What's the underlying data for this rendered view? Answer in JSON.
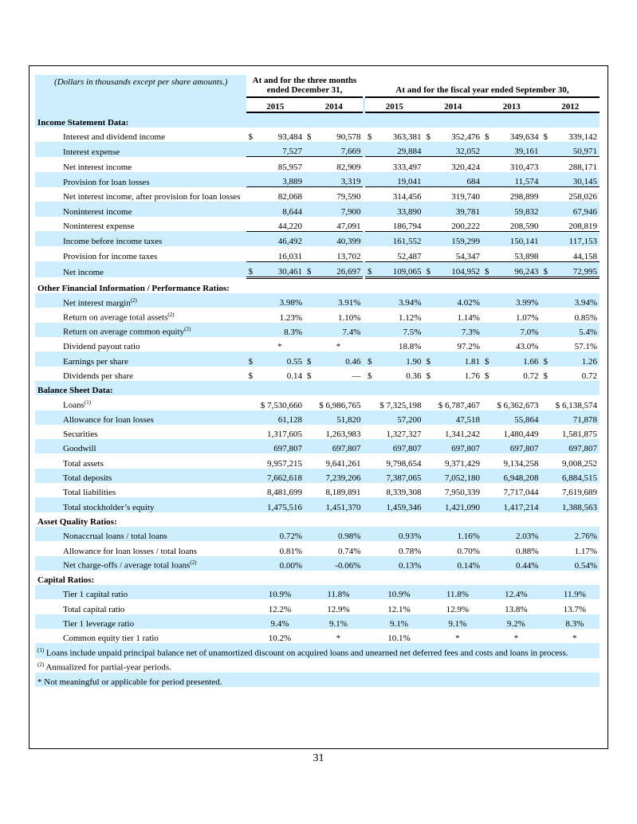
{
  "header": {
    "caption": "(Dollars in thousands except per share amounts.)",
    "group1": "At and for the three months ended December 31,",
    "group2": "At and for the fiscal year ended September 30,",
    "years": [
      "2015",
      "2014",
      "2015",
      "2014",
      "2013",
      "2012"
    ]
  },
  "sections": [
    {
      "title": "Income Statement Data:",
      "rows": [
        {
          "label": "Interest and dividend income",
          "dollar": true,
          "values": [
            "93,484",
            "90,578",
            "363,381",
            "352,476",
            "349,634",
            "339,142"
          ]
        },
        {
          "label": "Interest expense",
          "underline": "single",
          "values": [
            "7,527",
            "7,669",
            "29,884",
            "32,052",
            "39,161",
            "50,971"
          ]
        },
        {
          "label": "Net interest income",
          "values": [
            "85,957",
            "82,909",
            "333,497",
            "320,424",
            "310,473",
            "288,171"
          ]
        },
        {
          "label": "Provision for loan losses",
          "underline": "single",
          "values": [
            "3,889",
            "3,319",
            "19,041",
            "684",
            "11,574",
            "30,145"
          ]
        },
        {
          "label": "Net interest income, after provision for loan losses",
          "values": [
            "82,068",
            "79,590",
            "314,456",
            "319,740",
            "298,899",
            "258,026"
          ]
        },
        {
          "label": "Noninterest income",
          "values": [
            "8,644",
            "7,900",
            "33,890",
            "39,781",
            "59,832",
            "67,946"
          ]
        },
        {
          "label": "Noninterest expense",
          "underline": "single",
          "values": [
            "44,220",
            "47,091",
            "186,794",
            "200,222",
            "208,590",
            "208,819"
          ]
        },
        {
          "label": "Income before income taxes",
          "values": [
            "46,492",
            "40,399",
            "161,552",
            "159,299",
            "150,141",
            "117,153"
          ]
        },
        {
          "label": "Provision for income taxes",
          "underline": "single",
          "values": [
            "16,031",
            "13,702",
            "52,487",
            "54,347",
            "53,898",
            "44,158"
          ]
        },
        {
          "label": "Net income",
          "dollar": true,
          "underline": "double",
          "values": [
            "30,461",
            "26,697",
            "109,065",
            "104,952",
            "96,243",
            "72,995"
          ]
        }
      ]
    },
    {
      "title": "Other Financial Information / Performance Ratios:",
      "rows": [
        {
          "label": "Net interest margin",
          "note": "(2)",
          "values": [
            "3.98%",
            "3.91%",
            "3.94%",
            "4.02%",
            "3.99%",
            "3.94%"
          ]
        },
        {
          "label": "Return on average total assets",
          "note": "(2)",
          "values": [
            "1.23%",
            "1.10%",
            "1.12%",
            "1.14%",
            "1.07%",
            "0.85%"
          ]
        },
        {
          "label": "Return on average common equity",
          "note": "(2)",
          "values": [
            "8.3%",
            "7.4%",
            "7.5%",
            "7.3%",
            "7.0%",
            "5.4%"
          ]
        },
        {
          "label": "Dividend payout ratio",
          "values": [
            "*",
            "*",
            "18.8%",
            "97.2%",
            "43.0%",
            "57.1%"
          ]
        },
        {
          "label": "Earnings per share",
          "dollar": true,
          "values": [
            "0.55",
            "0.46",
            "1.90",
            "1.81",
            "1.66",
            "1.26"
          ]
        },
        {
          "label": "Dividends per share",
          "dollar": true,
          "values": [
            "0.14",
            "—",
            "0.36",
            "1.76",
            "0.72",
            "0.72"
          ]
        }
      ]
    },
    {
      "title": "Balance Sheet Data:",
      "rows": [
        {
          "label": "Loans",
          "note": "(1)",
          "values": [
            "$ 7,530,660",
            "$ 6,986,765",
            "$ 7,325,198",
            "$ 6,787,467",
            "$ 6,362,673",
            "$ 6,138,574"
          ]
        },
        {
          "label": "Allowance for loan losses",
          "values": [
            "61,128",
            "51,820",
            "57,200",
            "47,518",
            "55,864",
            "71,878"
          ]
        },
        {
          "label": "Securities",
          "values": [
            "1,317,605",
            "1,263,983",
            "1,327,327",
            "1,341,242",
            "1,480,449",
            "1,581,875"
          ]
        },
        {
          "label": "Goodwill",
          "values": [
            "697,807",
            "697,807",
            "697,807",
            "697,807",
            "697,807",
            "697,807"
          ]
        },
        {
          "label": "Total assets",
          "values": [
            "9,957,215",
            "9,641,261",
            "9,798,654",
            "9,371,429",
            "9,134,258",
            "9,008,252"
          ]
        },
        {
          "label": "Total deposits",
          "values": [
            "7,662,618",
            "7,239,206",
            "7,387,065",
            "7,052,180",
            "6,948,208",
            "6,884,515"
          ]
        },
        {
          "label": "Total liabilities",
          "values": [
            "8,481,699",
            "8,189,891",
            "8,339,308",
            "7,950,339",
            "7,717,044",
            "7,619,689"
          ]
        },
        {
          "label": "Total stockholder’s equity",
          "values": [
            "1,475,516",
            "1,451,370",
            "1,459,346",
            "1,421,090",
            "1,417,214",
            "1,388,563"
          ]
        }
      ]
    },
    {
      "title": "Asset Quality Ratios:",
      "rows": [
        {
          "label": "Nonaccrual loans / total loans",
          "values": [
            "0.72%",
            "0.98%",
            "0.93%",
            "1.16%",
            "2.03%",
            "2.76%"
          ]
        },
        {
          "label": "Allowance for loan losses / total loans",
          "values": [
            "0.81%",
            "0.74%",
            "0.78%",
            "0.70%",
            "0.88%",
            "1.17%"
          ]
        },
        {
          "label": "Net charge-offs / average total loans",
          "note": "(2)",
          "values": [
            "0.00%",
            "-0.06%",
            "0.13%",
            "0.14%",
            "0.44%",
            "0.54%"
          ]
        }
      ]
    },
    {
      "title": "Capital Ratios:",
      "rows": [
        {
          "label": "Tier 1 capital ratio",
          "values": [
            "10.9%",
            "11.8%",
            "10.9%",
            "11.8%",
            "12.4%",
            "11.9%"
          ]
        },
        {
          "label": "Total capital ratio",
          "values": [
            "12.2%",
            "12.9%",
            "12.1%",
            "12.9%",
            "13.8%",
            "13.7%"
          ]
        },
        {
          "label": "Tier 1 leverage ratio",
          "values": [
            "9.4%",
            "9.1%",
            "9.1%",
            "9.1%",
            "9.2%",
            "8.3%"
          ]
        },
        {
          "label": "Common equity tier 1 ratio",
          "values": [
            "10.2%",
            "*",
            "10.1%",
            "*",
            "*",
            "*"
          ]
        }
      ]
    }
  ],
  "dollar_sign": "$",
  "footnotes": [
    {
      "mark": "(1)",
      "text": "Loans include unpaid principal balance net of unamortized discount on acquired loans and unearned net deferred fees and costs and loans in process."
    },
    {
      "mark": "(2)",
      "text": "Annualized for partial-year periods."
    },
    {
      "mark": "",
      "text": "* Not meaningful or applicable for period presented."
    }
  ],
  "page_number": "31",
  "row_shade_color": "#cceeff"
}
